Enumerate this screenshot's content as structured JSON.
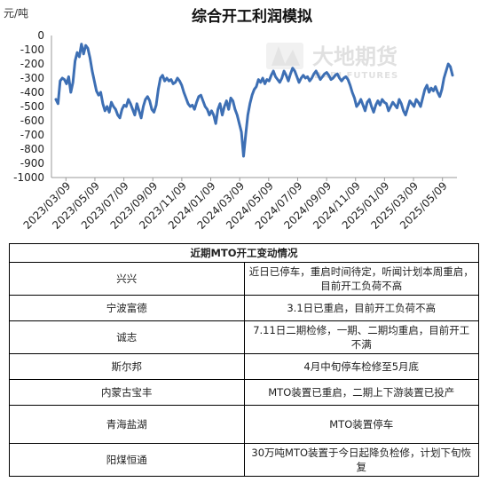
{
  "chart_data": {
    "type": "line",
    "title": "综合开工利润模拟",
    "ylabel": "元/吨",
    "ylim": [
      -1000,
      0
    ],
    "yticks": [
      0,
      -100,
      -200,
      -300,
      -400,
      -500,
      -600,
      -700,
      -800,
      -900,
      -1000
    ],
    "x_tick_labels": [
      "2023/03/09",
      "2023/05/09",
      "2023/07/09",
      "2023/09/09",
      "2023/11/09",
      "2024/01/09",
      "2024/03/09",
      "2024/05/09",
      "2024/07/09",
      "2024/09/09",
      "2024/11/09",
      "2025/01/09",
      "2025/03/09",
      "2025/05/09"
    ],
    "grid": false,
    "legend": "none",
    "line_color": "#3d6fb4",
    "series": [
      {
        "values": [
          -450,
          -480,
          -320,
          -300,
          -310,
          -340,
          -290,
          -400,
          -330,
          -180,
          -120,
          -150,
          -60,
          -130,
          -70,
          -90,
          -160,
          -250,
          -320,
          -390,
          -420,
          -400,
          -480,
          -530,
          -500,
          -540,
          -470,
          -500,
          -520,
          -560,
          -580,
          -520,
          -490,
          -500,
          -450,
          -480,
          -520,
          -560,
          -480,
          -530,
          -580,
          -500,
          -450,
          -430,
          -460,
          -520,
          -540,
          -490,
          -380,
          -300,
          -280,
          -320,
          -300,
          -320,
          -310,
          -340,
          -330,
          -300,
          -320,
          -350,
          -400,
          -440,
          -480,
          -500,
          -490,
          -520,
          -470,
          -430,
          -420,
          -460,
          -500,
          -520,
          -560,
          -530,
          -560,
          -620,
          -520,
          -480,
          -560,
          -500,
          -460,
          -520,
          -440,
          -460,
          -520,
          -560,
          -620,
          -680,
          -850,
          -700,
          -560,
          -480,
          -420,
          -380,
          -360,
          -310,
          -330,
          -300,
          -340,
          -310,
          -320,
          -280,
          -250,
          -290,
          -310,
          -330,
          -300,
          -250,
          -280,
          -320,
          -270,
          -230,
          -250,
          -290,
          -330,
          -300,
          -280,
          -300,
          -290,
          -320,
          -300,
          -270,
          -250,
          -280,
          -310,
          -290,
          -270,
          -260,
          -280,
          -310,
          -300,
          -280,
          -270,
          -300,
          -320,
          -300,
          -290,
          -310,
          -350,
          -400,
          -440,
          -500,
          -480,
          -450,
          -490,
          -530,
          -470,
          -450,
          -500,
          -540,
          -490,
          -460,
          -490,
          -450,
          -470,
          -480,
          -530,
          -500,
          -470,
          -490,
          -510,
          -450,
          -480,
          -530,
          -560,
          -510,
          -460,
          -480,
          -500,
          -450,
          -470,
          -500,
          -440,
          -380,
          -350,
          -400,
          -370,
          -390,
          -360,
          -400,
          -430,
          -380,
          -300,
          -250,
          -200,
          -220,
          -280
        ]
      }
    ]
  },
  "logo": {
    "name_cn": "大地期货",
    "name_en": "DADI FUTURES"
  },
  "table": {
    "title": "近期MTO开工变动情况",
    "rows": [
      {
        "company": "兴兴",
        "status": "近日已停车，重启时间待定，听闻计划本周重启，目前开工负荷不高"
      },
      {
        "company": "宁波富德",
        "status": "3.1日已重启，目前开工负荷不高"
      },
      {
        "company": "诚志",
        "status": "7.11日二期检修，一期、二期均重启，目前开工不满"
      },
      {
        "company": "斯尔邦",
        "status": "4月中旬停车检修至5月底"
      },
      {
        "company": "内蒙古宝丰",
        "status": "MTO装置已重启，二期上下游装置已投产"
      },
      {
        "company": "青海盐湖",
        "status": "MTO装置停车"
      },
      {
        "company": "阳煤恒通",
        "status": "30万吨MTO装置于今日起降负检修，计划下旬恢复"
      }
    ]
  }
}
